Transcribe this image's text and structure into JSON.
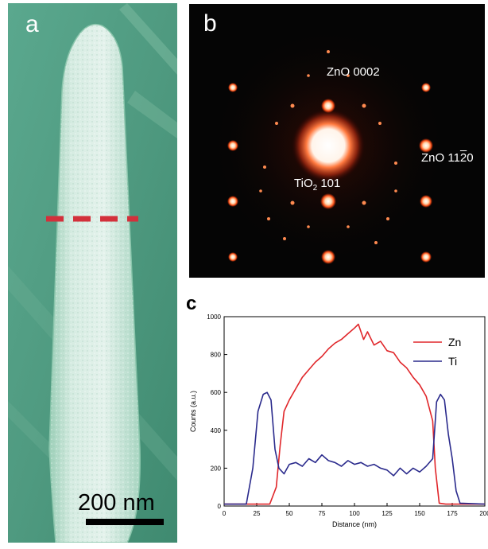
{
  "panels": {
    "a": {
      "label": "a",
      "scale_bar_label": "200 nm",
      "colors": {
        "background": "#4f9a80",
        "rod": "#cfe8dc",
        "marker": "#d3303b"
      }
    },
    "b": {
      "label": "b",
      "spot_labels": {
        "zno_0002": "ZnO 0002",
        "zno_1120_prefix": "ZnO 11",
        "zno_1120_bar": "2",
        "zno_1120_suffix": "0",
        "tio2_prefix": "TiO",
        "tio2_sub": "2",
        "tio2_suffix": " 101"
      }
    },
    "c": {
      "label": "c"
    }
  },
  "chart_data": {
    "type": "line",
    "title": "",
    "xlabel": "Distance (nm)",
    "ylabel": "Counts (a.u.)",
    "xlim": [
      0,
      200
    ],
    "ylim": [
      0,
      1000
    ],
    "x_ticks": [
      0,
      25,
      50,
      75,
      100,
      125,
      150,
      175,
      200
    ],
    "y_ticks": [
      0,
      200,
      400,
      600,
      800,
      1000
    ],
    "legend_position": "top-right",
    "series": [
      {
        "name": "Zn",
        "color": "#e0262a",
        "x": [
          0,
          35,
          40,
          43,
          46,
          50,
          55,
          60,
          65,
          70,
          75,
          80,
          85,
          90,
          95,
          100,
          103,
          107,
          110,
          115,
          120,
          125,
          130,
          135,
          140,
          145,
          150,
          155,
          160,
          162,
          165,
          170,
          200
        ],
        "y": [
          10,
          10,
          100,
          320,
          500,
          560,
          620,
          680,
          720,
          760,
          790,
          830,
          860,
          880,
          910,
          940,
          960,
          880,
          920,
          850,
          870,
          820,
          810,
          760,
          730,
          680,
          640,
          580,
          450,
          200,
          15,
          10,
          10
        ]
      },
      {
        "name": "Ti",
        "color": "#2a2a8c",
        "x": [
          0,
          17,
          22,
          26,
          30,
          33,
          36,
          39,
          42,
          46,
          50,
          55,
          60,
          65,
          70,
          75,
          80,
          85,
          90,
          95,
          100,
          105,
          110,
          115,
          120,
          125,
          130,
          135,
          140,
          145,
          150,
          155,
          160,
          163,
          166,
          169,
          172,
          175,
          178,
          181,
          200
        ],
        "y": [
          10,
          10,
          200,
          500,
          590,
          600,
          560,
          300,
          200,
          170,
          220,
          230,
          210,
          250,
          230,
          270,
          240,
          230,
          210,
          240,
          220,
          230,
          210,
          220,
          200,
          190,
          160,
          200,
          170,
          200,
          180,
          210,
          250,
          550,
          590,
          560,
          380,
          250,
          80,
          15,
          10
        ]
      }
    ]
  }
}
